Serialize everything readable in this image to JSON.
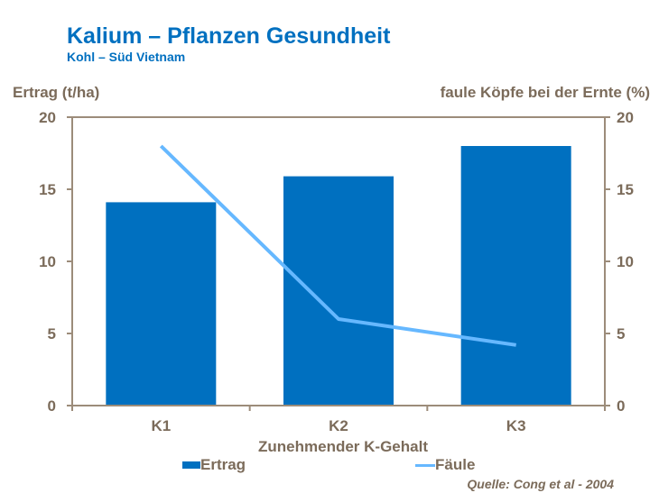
{
  "chart_data": {
    "type": "bar+line",
    "title": "Kalium – Pflanzen Gesundheit",
    "subtitle": "Kohl – Süd Vietnam",
    "ylabel": "Ertrag (t/ha)",
    "y2label": "faule Köpfe bei der Ernte (%)",
    "xlabel": "Zunehmender K-Gehalt",
    "categories": [
      "K1",
      "K2",
      "K3"
    ],
    "ylim": [
      0,
      20
    ],
    "y2lim": [
      0,
      20
    ],
    "yticks": [
      "0",
      "5",
      "10",
      "15",
      "20"
    ],
    "series": [
      {
        "name": "Ertrag",
        "type": "bar",
        "axis": "left",
        "color": "#0070C0",
        "values": [
          14.1,
          15.9,
          18.0
        ]
      },
      {
        "name": "Fäule",
        "type": "line",
        "axis": "right",
        "color": "#66B8FF",
        "values": [
          18.0,
          6.0,
          4.2
        ]
      }
    ],
    "legend_position": "bottom",
    "grid": false,
    "source": "Quelle: Cong et al - 2004"
  }
}
